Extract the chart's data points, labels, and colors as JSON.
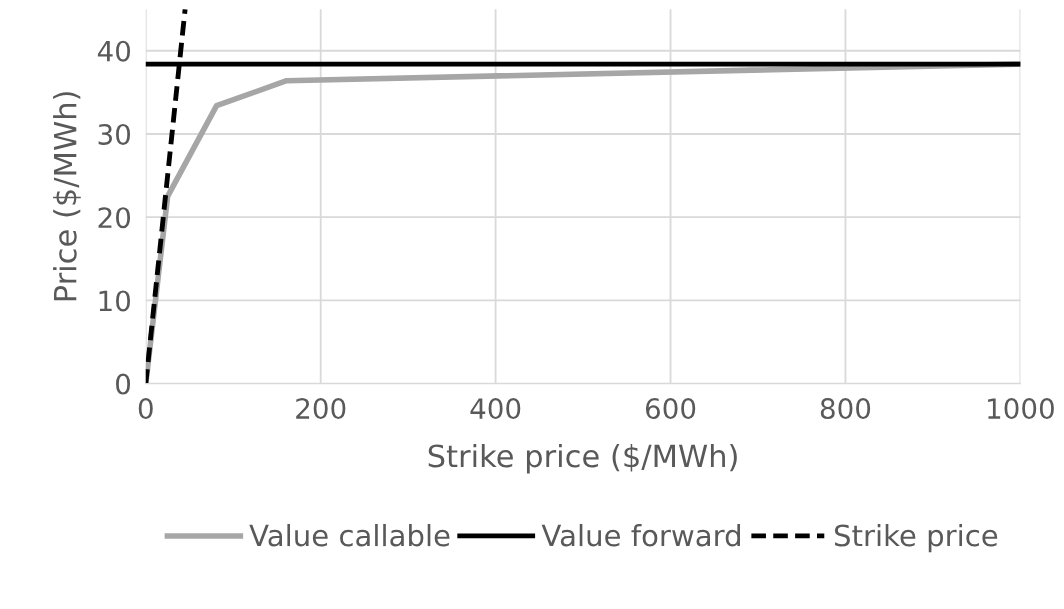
{
  "chart_data": {
    "type": "line",
    "xlabel": "Strike price ($/MWh)",
    "ylabel": "Price ($/MWh)",
    "xlim": [
      0,
      1000
    ],
    "xticks": [
      0,
      200,
      400,
      600,
      800,
      1000
    ],
    "ylim": [
      0,
      45
    ],
    "yticks": [
      0,
      10,
      20,
      30,
      40
    ],
    "grid": true,
    "legend": "bottom",
    "series": [
      {
        "name": "Value callable",
        "color": "#a6a6a6",
        "line_style": "solid",
        "x": [
          0,
          25,
          81,
          161,
          1000
        ],
        "values": [
          0,
          22.5,
          33.4,
          36.4,
          38.4
        ]
      },
      {
        "name": "Value forward",
        "color": "#000000",
        "line_style": "solid",
        "x": [
          0,
          1000
        ],
        "values": [
          38.4,
          38.4
        ]
      },
      {
        "name": "Strike price",
        "color": "#000000",
        "line_style": "dashed",
        "x": [
          0,
          45
        ],
        "values": [
          0,
          45
        ]
      }
    ]
  }
}
